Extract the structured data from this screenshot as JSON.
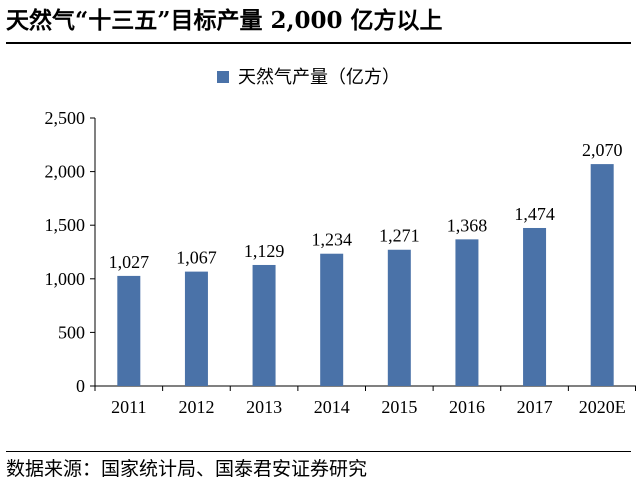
{
  "title": "天然气“十三五”目标产量 2,000 亿方以上",
  "source": "数据来源：国家统计局、国泰君安证券研究",
  "colors": {
    "bar": "#4a72a8",
    "axis": "#000000"
  },
  "chart_data": {
    "type": "bar",
    "categories": [
      "2011",
      "2012",
      "2013",
      "2014",
      "2015",
      "2016",
      "2017",
      "2020E"
    ],
    "series": [
      {
        "name": "天然气产量（亿方）",
        "values": [
          1027,
          1067,
          1129,
          1234,
          1271,
          1368,
          1474,
          2070
        ]
      }
    ],
    "data_labels": [
      "1,027",
      "1,067",
      "1,129",
      "1,234",
      "1,271",
      "1,368",
      "1,474",
      "2,070"
    ],
    "yticks": [
      0,
      500,
      1000,
      1500,
      2000,
      2500
    ],
    "ytick_labels": [
      "0",
      "500",
      "1,000",
      "1,500",
      "2,000",
      "2,500"
    ],
    "ylim": [
      0,
      2500
    ],
    "legend_position": "top-center",
    "grid": false
  }
}
